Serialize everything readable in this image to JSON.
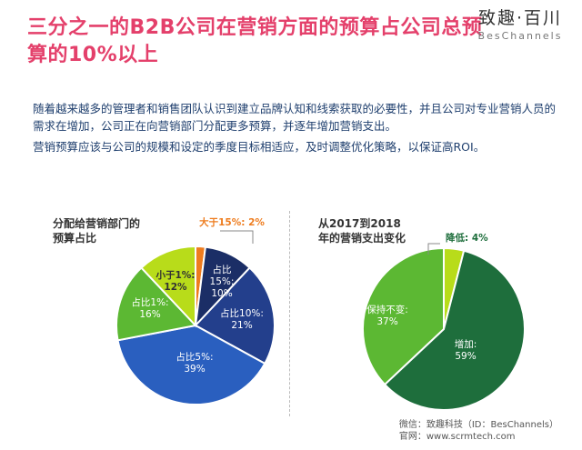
{
  "header": {
    "title": "三分之一的B2B公司在营销方面的预算占公司总预算的10%以上",
    "logo_cn": "致趣·百川",
    "logo_en": "BesChannels"
  },
  "intro": {
    "p1": "随着越来越多的管理者和销售团队认识到建立品牌认知和线索获取的必要性，并且公司对专业营销人员的需求在增加，公司正在向营销部门分配更多预算，并逐年增加营销支出。",
    "p2": "营销预算应该与公司的规模和设定的季度目标相适应，及时调整优化策略，以保证高ROI。"
  },
  "chart_data": [
    {
      "type": "pie",
      "title": "分配给营销部门的预算占比",
      "slices": [
        {
          "label": "大于15%: 2%",
          "value": 2,
          "color": "#ee7c1e"
        },
        {
          "label": "占比15%: 10%",
          "value": 10,
          "color": "#1b2e66"
        },
        {
          "label": "占比10%: 21%",
          "value": 21,
          "color": "#233f8c"
        },
        {
          "label": "占比5%: 39%",
          "value": 39,
          "color": "#2a5fbf"
        },
        {
          "label": "占比1%: 16%",
          "value": 16,
          "color": "#5cb833"
        },
        {
          "label": "小于1%: 12%",
          "value": 12,
          "color": "#b8dc1a"
        }
      ]
    },
    {
      "type": "pie",
      "title": "从2017到2018年的营销支出变化",
      "slices": [
        {
          "label": "降低: 4%",
          "value": 4,
          "color": "#b8dc1a"
        },
        {
          "label": "增加: 59%",
          "value": 59,
          "color": "#1e6e3c"
        },
        {
          "label": "保持不变: 37%",
          "value": 37,
          "color": "#5cb833"
        }
      ]
    }
  ],
  "footer": {
    "line1": "微信：致趣科技（ID：BesChannels）",
    "line2": "官网：www.scrmtech.com"
  }
}
